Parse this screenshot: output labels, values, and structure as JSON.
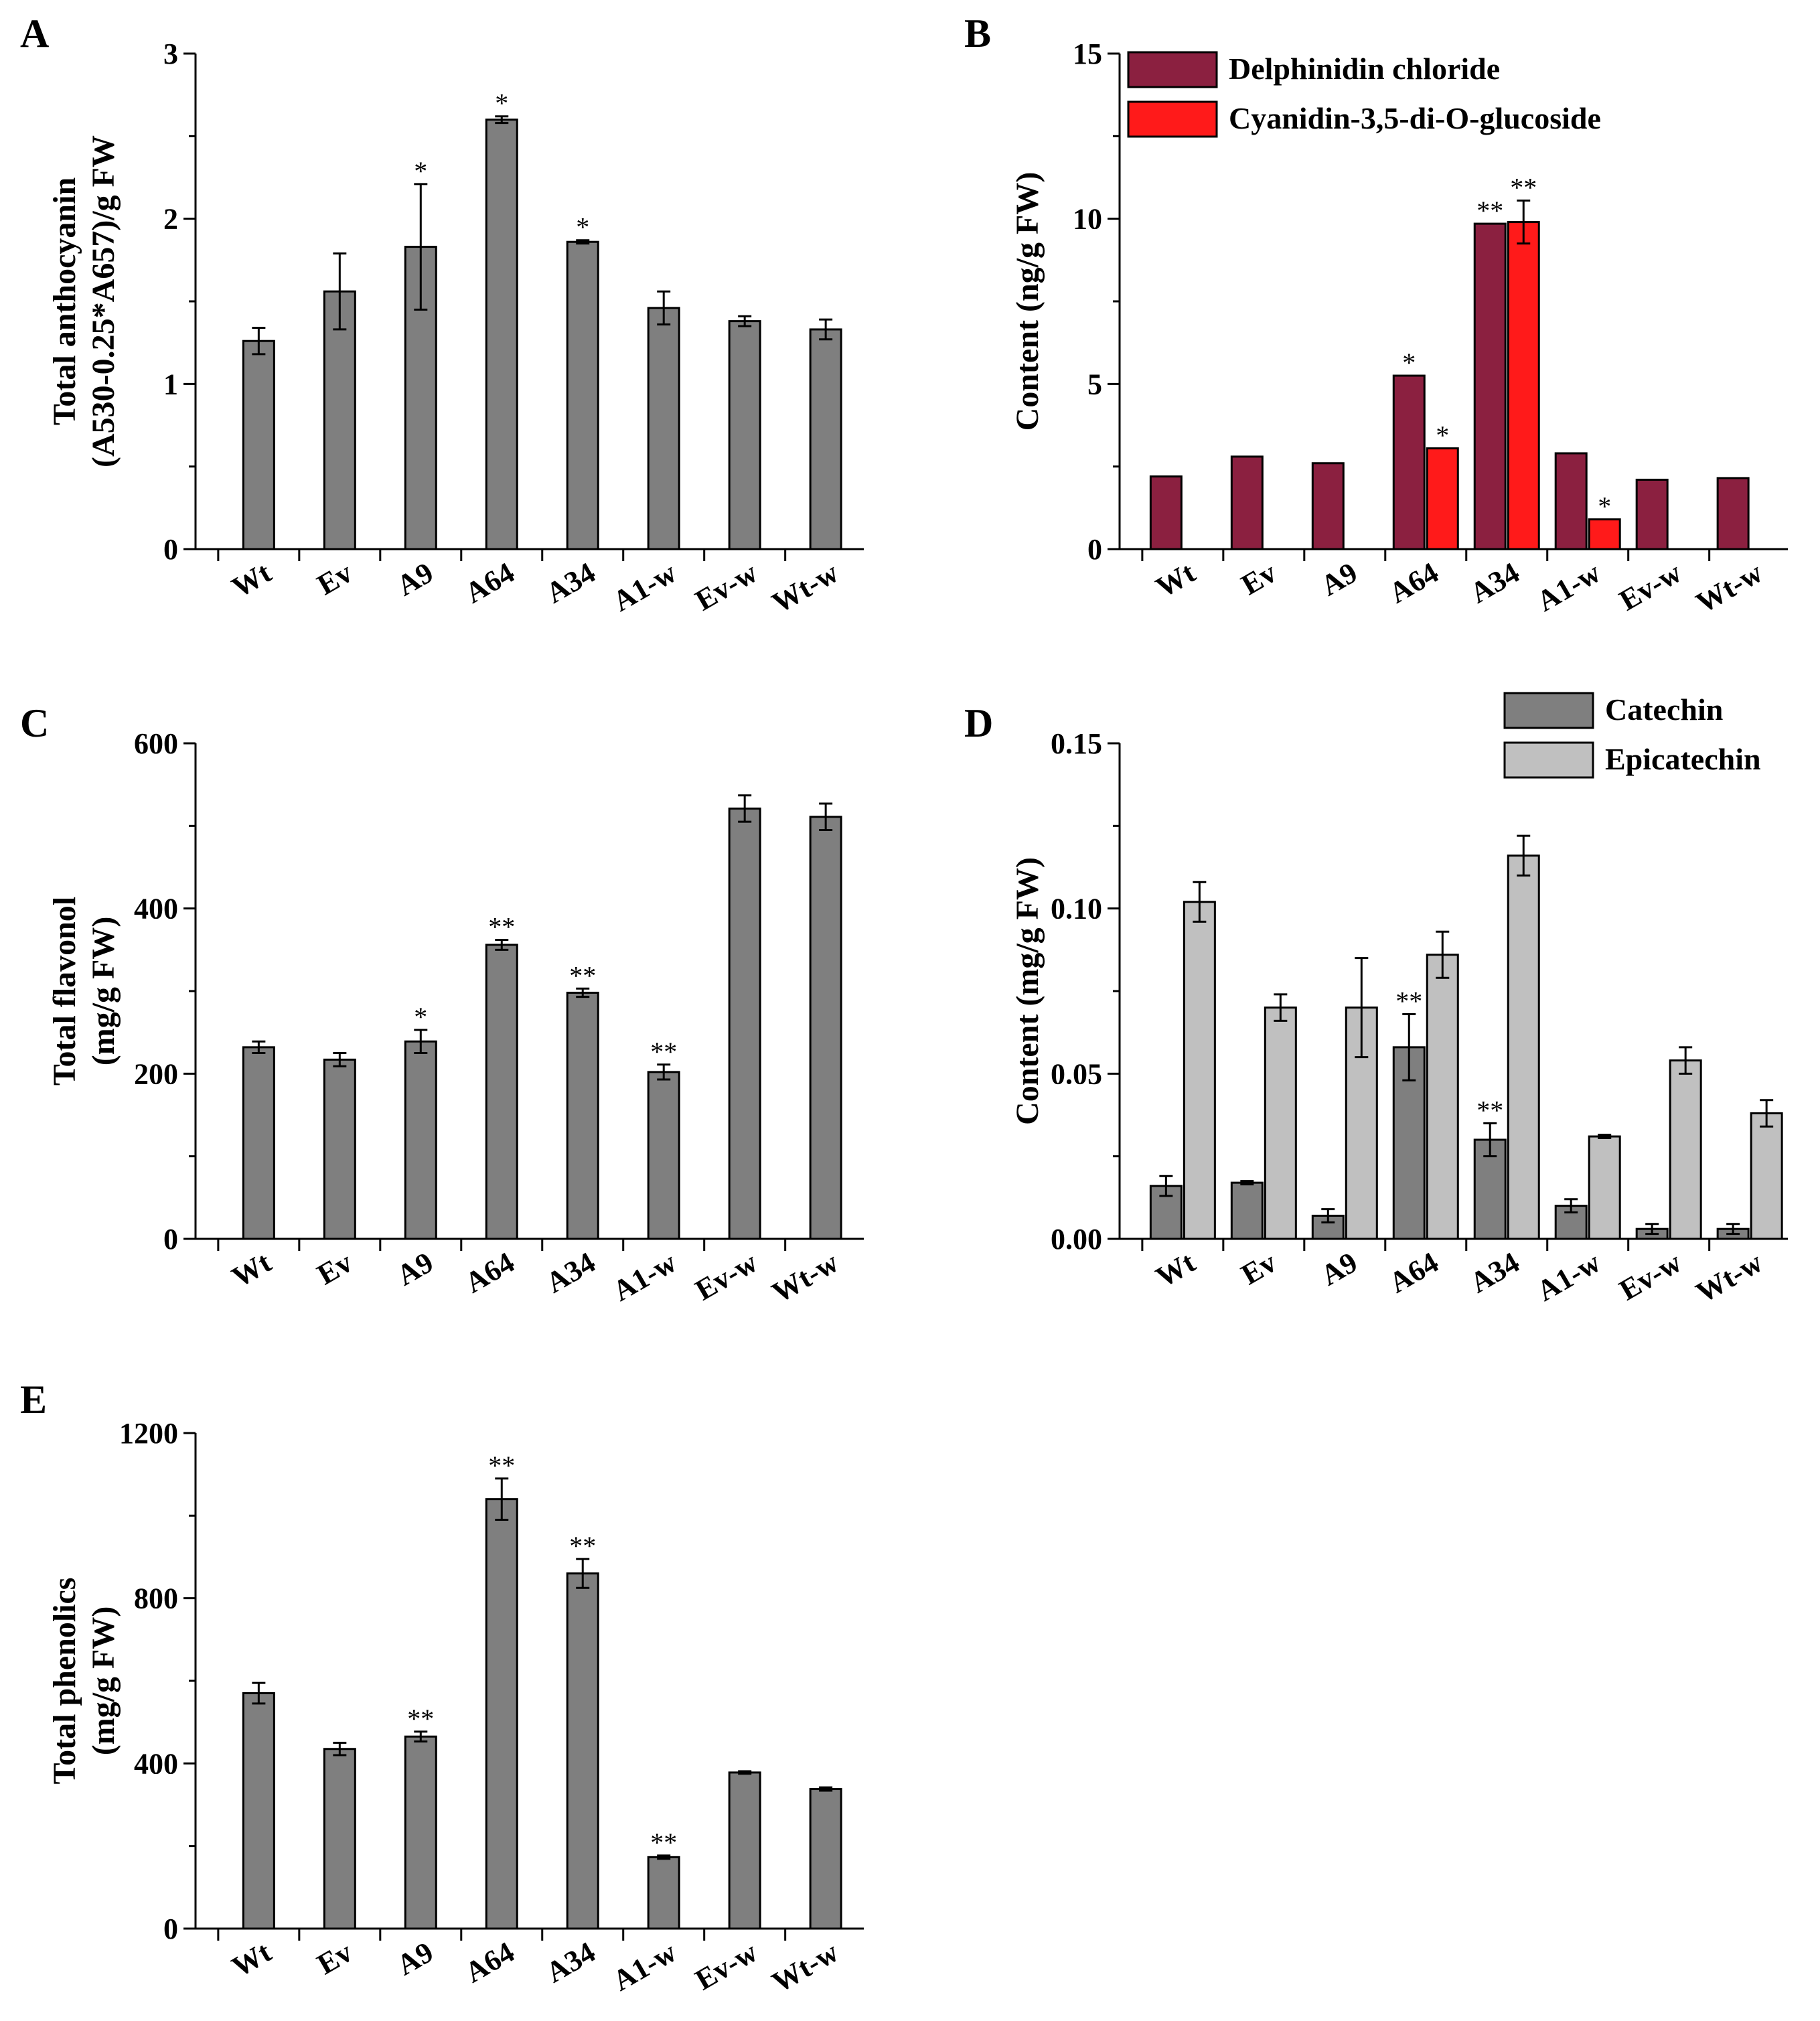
{
  "categories": [
    "Wt",
    "Ev",
    "A9",
    "A64",
    "A34",
    "A1-w",
    "Ev-w",
    "Wt-w"
  ],
  "colors": {
    "gray": "#7f7f7f",
    "light_gray": "#c0c0c0",
    "maroon": "#8b2040",
    "red": "#ff1a1a",
    "axis": "#000000"
  },
  "chart_data": [
    {
      "panel": "A",
      "type": "bar",
      "ylabel_lines": [
        "Total anthocyanin",
        "(A530-0.25*A657)/g FW"
      ],
      "ylim": [
        0,
        3
      ],
      "yticks": [
        "0",
        "1",
        "2",
        "3"
      ],
      "ytick_values": [
        0,
        1,
        2,
        3
      ],
      "series": [
        {
          "name": "Total anthocyanin",
          "color_key": "gray",
          "values": [
            1.26,
            1.56,
            1.83,
            2.6,
            1.86,
            1.46,
            1.38,
            1.33
          ],
          "errors": [
            0.08,
            0.23,
            0.38,
            0.02,
            0.01,
            0.1,
            0.03,
            0.06
          ],
          "sig": [
            "",
            "",
            "*",
            "*",
            "*",
            "",
            "",
            ""
          ]
        }
      ]
    },
    {
      "panel": "B",
      "type": "bar",
      "ylabel_lines": [
        "Content (ng/g FW)"
      ],
      "ylim": [
        0,
        15
      ],
      "yticks": [
        "0",
        "5",
        "10",
        "15"
      ],
      "ytick_values": [
        0,
        5,
        10,
        15
      ],
      "legend": [
        "Delphinidin chloride",
        "Cyanidin-3,5-di-O-glucoside"
      ],
      "series": [
        {
          "name": "Delphinidin chloride",
          "color_key": "maroon",
          "values": [
            2.2,
            2.8,
            2.6,
            5.25,
            9.85,
            2.9,
            2.1,
            2.15
          ],
          "errors": [
            0,
            0,
            0,
            0,
            0,
            0,
            0,
            0
          ],
          "sig": [
            "",
            "",
            "",
            "*",
            "**",
            "",
            "",
            ""
          ]
        },
        {
          "name": "Cyanidin-3,5-di-O-glucoside",
          "color_key": "red",
          "values": [
            null,
            null,
            null,
            3.05,
            9.9,
            0.9,
            null,
            null
          ],
          "errors": [
            0,
            0,
            0,
            0,
            0.65,
            0,
            0,
            0
          ],
          "sig": [
            "",
            "",
            "",
            "*",
            "**",
            "*",
            "",
            ""
          ]
        }
      ]
    },
    {
      "panel": "C",
      "type": "bar",
      "ylabel_lines": [
        "Total flavonol",
        "(mg/g FW)"
      ],
      "ylim": [
        0,
        600
      ],
      "yticks": [
        "0",
        "200",
        "400",
        "600"
      ],
      "ytick_values": [
        0,
        200,
        400,
        600
      ],
      "series": [
        {
          "name": "Total flavonol",
          "color_key": "gray",
          "values": [
            232,
            217,
            239,
            356,
            298,
            202,
            521,
            511
          ],
          "errors": [
            7,
            8,
            14,
            6,
            5,
            9,
            16,
            16
          ],
          "sig": [
            "",
            "",
            "*",
            "**",
            "**",
            "**",
            "",
            ""
          ]
        }
      ]
    },
    {
      "panel": "D",
      "type": "bar",
      "ylabel_lines": [
        "Content (mg/g FW)"
      ],
      "ylim": [
        0,
        0.15
      ],
      "yticks": [
        "0.00",
        "0.05",
        "0.10",
        "0.15"
      ],
      "ytick_values": [
        0,
        0.05,
        0.1,
        0.15
      ],
      "legend": [
        "Catechin",
        "Epicatechin"
      ],
      "series": [
        {
          "name": "Catechin",
          "color_key": "gray",
          "values": [
            0.016,
            0.017,
            0.007,
            0.058,
            0.03,
            0.01,
            0.003,
            0.003
          ],
          "errors": [
            0.003,
            0.0005,
            0.002,
            0.01,
            0.005,
            0.002,
            0.0015,
            0.0015
          ],
          "sig": [
            "",
            "",
            "",
            "**",
            "**",
            "",
            "",
            ""
          ]
        },
        {
          "name": "Epicatechin",
          "color_key": "light_gray",
          "values": [
            0.102,
            0.07,
            0.07,
            0.086,
            0.116,
            0.031,
            0.054,
            0.038
          ],
          "errors": [
            0.006,
            0.004,
            0.015,
            0.007,
            0.006,
            0.0005,
            0.004,
            0.004
          ],
          "sig": [
            "",
            "",
            "",
            "",
            "",
            "",
            "",
            ""
          ]
        }
      ]
    },
    {
      "panel": "E",
      "type": "bar",
      "ylabel_lines": [
        "Total phenolics",
        "(mg/g FW)"
      ],
      "ylim": [
        0,
        1200
      ],
      "yticks": [
        "0",
        "400",
        "800",
        "1200"
      ],
      "ytick_values": [
        0,
        400,
        800,
        1200
      ],
      "series": [
        {
          "name": "Total phenolics",
          "color_key": "gray",
          "values": [
            570,
            435,
            465,
            1040,
            860,
            173,
            378,
            338
          ],
          "errors": [
            25,
            15,
            12,
            50,
            35,
            4,
            3,
            4
          ],
          "sig": [
            "",
            "",
            "**",
            "**",
            "**",
            "**",
            "",
            ""
          ]
        }
      ]
    }
  ]
}
